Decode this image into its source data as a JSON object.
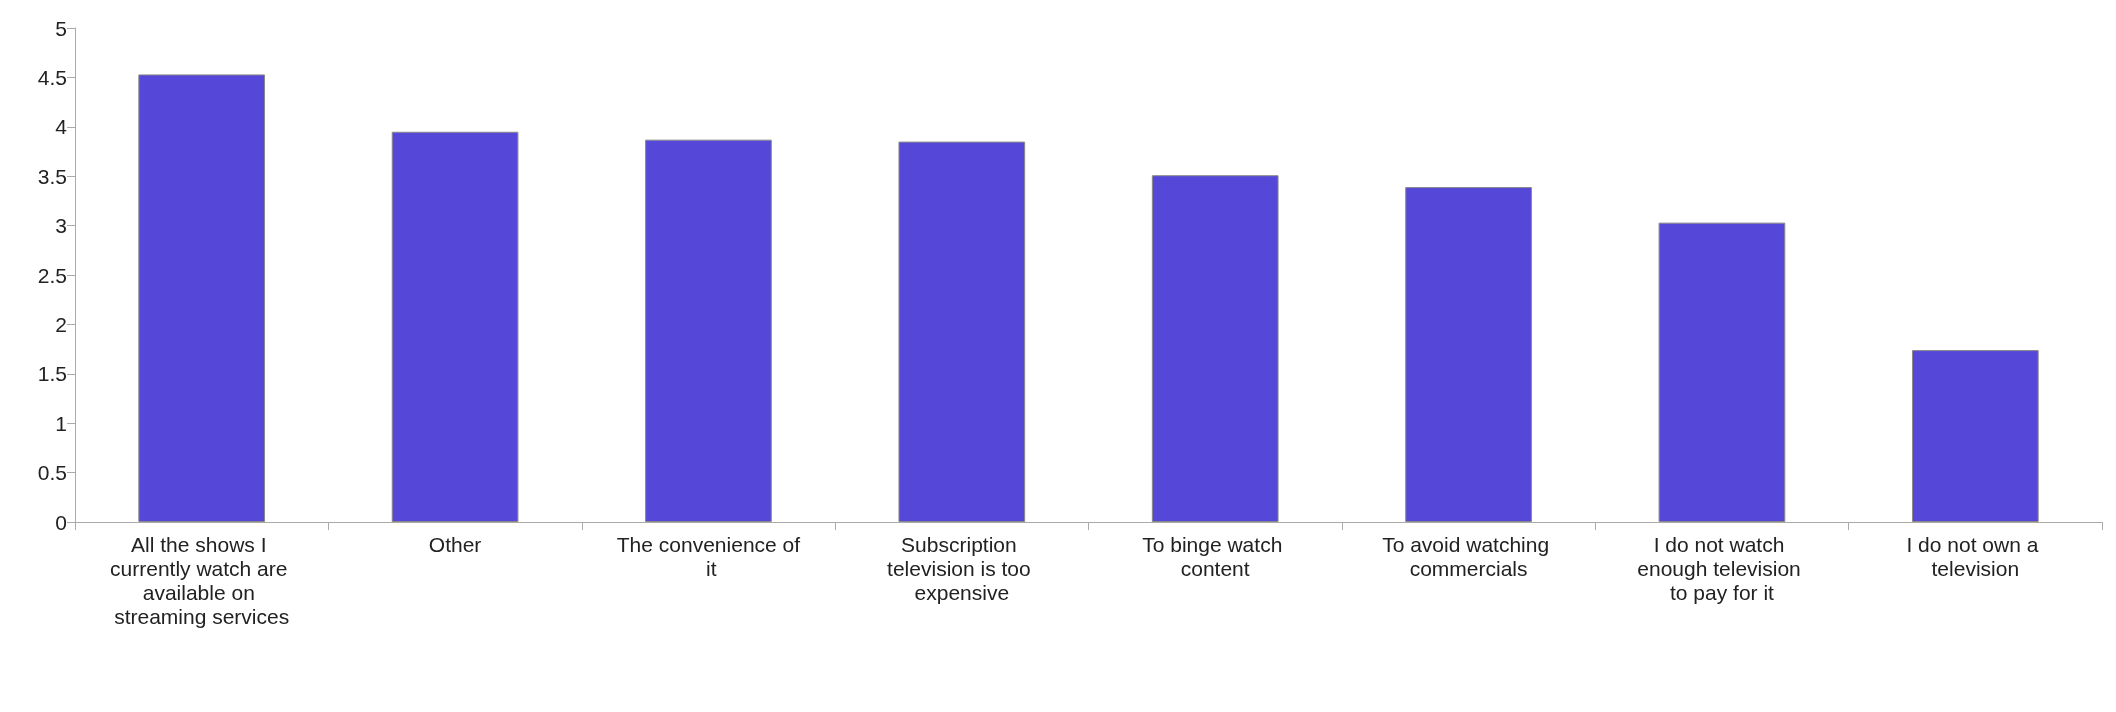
{
  "chart_data": {
    "type": "bar",
    "categories": [
      "All the shows I currently watch are available on streaming services",
      "Other",
      "The convenience of it",
      "Subscription television is too expensive",
      "To binge watch content",
      "To avoid watching commercials",
      "I do not watch enough television to pay for it",
      "I do not own a television"
    ],
    "values": [
      4.53,
      3.95,
      3.87,
      3.85,
      3.51,
      3.39,
      3.03,
      1.74
    ],
    "color": "#5548d9",
    "ylim": [
      0,
      5
    ],
    "yticks": [
      0,
      0.5,
      1,
      1.5,
      2,
      2.5,
      3,
      3.5,
      4,
      4.5,
      5
    ],
    "grid": false
  }
}
